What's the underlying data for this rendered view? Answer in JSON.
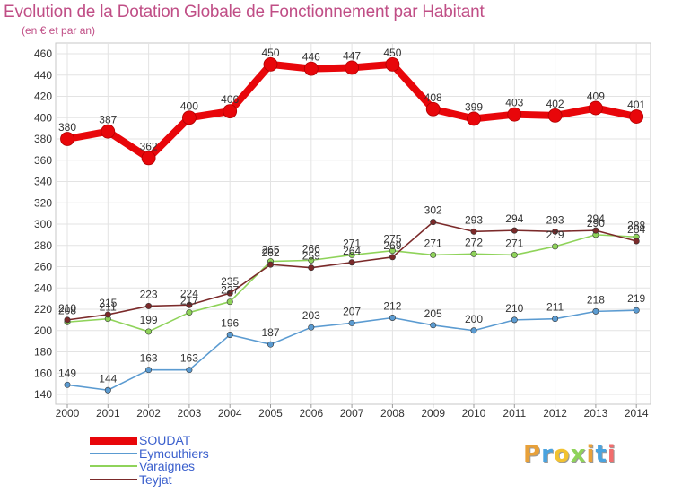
{
  "chart_data": {
    "type": "line",
    "title": "Evolution de la Dotation Globale de Fonctionnement par Habitant",
    "subtitle": "(en € et par an)",
    "xlabel": "",
    "ylabel": "",
    "ylim": [
      140,
      460
    ],
    "yticks": [
      140,
      160,
      180,
      200,
      220,
      240,
      260,
      280,
      300,
      320,
      340,
      360,
      380,
      400,
      420,
      440,
      460
    ],
    "x": [
      "2000",
      "2001",
      "2002",
      "2003",
      "2004",
      "2005",
      "2006",
      "2007",
      "2008",
      "2009",
      "2010",
      "2011",
      "2012",
      "2013",
      "2014"
    ],
    "grid": true,
    "legend_position": "bottom-left",
    "series": [
      {
        "name": "SOUDAT",
        "color": "#e8060a",
        "values": [
          380,
          387,
          362,
          400,
          406,
          450,
          446,
          447,
          450,
          408,
          399,
          403,
          402,
          409,
          401
        ]
      },
      {
        "name": "Eymouthiers",
        "color": "#5b9bd1",
        "values": [
          149,
          144,
          163,
          163,
          196,
          187,
          203,
          207,
          212,
          205,
          200,
          210,
          211,
          218,
          219
        ]
      },
      {
        "name": "Varaignes",
        "color": "#8fd35a",
        "values": [
          208,
          211,
          199,
          217,
          227,
          265,
          266,
          271,
          275,
          271,
          272,
          271,
          279,
          290,
          288
        ]
      },
      {
        "name": "Teyjat",
        "color": "#7b2a2a",
        "values": [
          210,
          215,
          223,
          224,
          235,
          262,
          259,
          264,
          269,
          302,
          293,
          294,
          293,
          294,
          284
        ]
      }
    ]
  },
  "brand": {
    "text": "Proxiti",
    "colors": [
      "#e8a13a",
      "#4aa3df",
      "#f2c230",
      "#8fd35a",
      "#e8a13a",
      "#4aa3df",
      "#f26d6d"
    ]
  }
}
